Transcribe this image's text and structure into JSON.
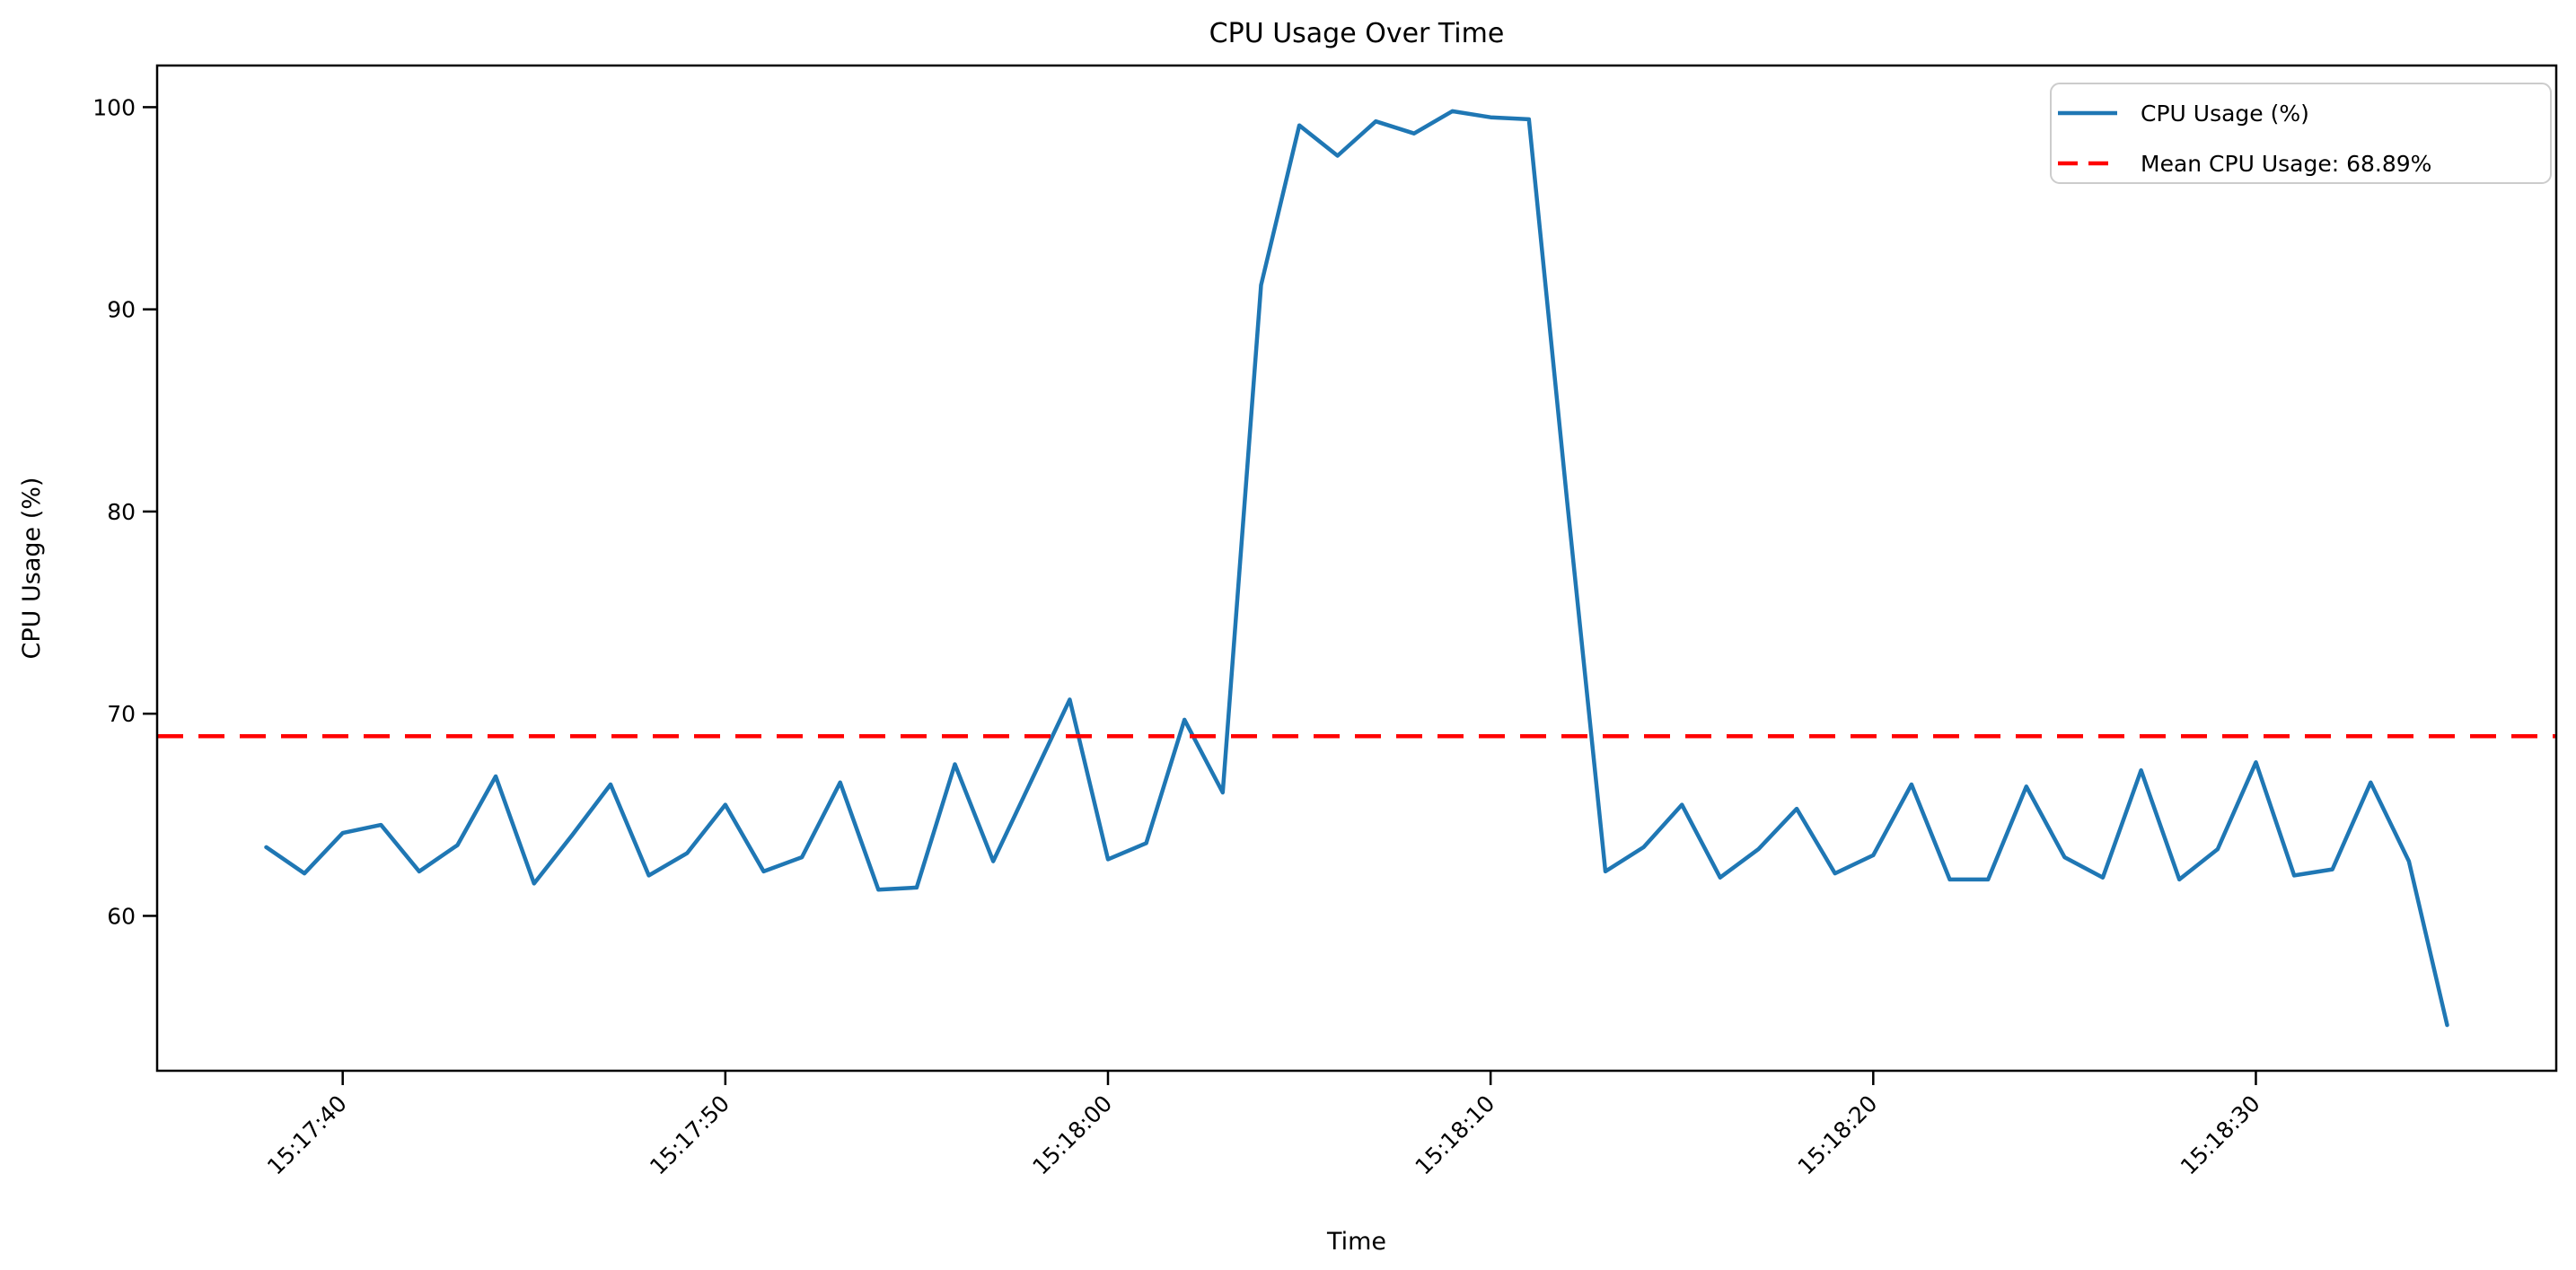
{
  "chart_data": {
    "type": "line",
    "title": "CPU Usage Over Time",
    "xlabel": "Time",
    "ylabel": "CPU Usage (%)",
    "grid": false,
    "legend_position": "upper right",
    "legend": [
      "CPU Usage (%)",
      "Mean CPU Usage: 68.89%"
    ],
    "yticks": [
      60,
      70,
      80,
      90,
      100
    ],
    "xticks": [
      "15:17:40",
      "15:17:50",
      "15:18:00",
      "15:18:10",
      "15:18:20",
      "15:18:30"
    ],
    "ylim": [
      52.3,
      102.1
    ],
    "x": [
      "15:17:38",
      "15:17:39",
      "15:17:40",
      "15:17:41",
      "15:17:42",
      "15:17:43",
      "15:17:44",
      "15:17:45",
      "15:17:46",
      "15:17:47",
      "15:17:48",
      "15:17:49",
      "15:17:50",
      "15:17:51",
      "15:17:52",
      "15:17:53",
      "15:17:54",
      "15:17:55",
      "15:17:56",
      "15:17:57",
      "15:17:58",
      "15:17:59",
      "15:18:00",
      "15:18:01",
      "15:18:02",
      "15:18:03",
      "15:18:04",
      "15:18:05",
      "15:18:06",
      "15:18:07",
      "15:18:08",
      "15:18:09",
      "15:18:10",
      "15:18:11",
      "15:18:12",
      "15:18:13",
      "15:18:14",
      "15:18:15",
      "15:18:16",
      "15:18:17",
      "15:18:18",
      "15:18:19",
      "15:18:20",
      "15:18:21",
      "15:18:22",
      "15:18:23",
      "15:18:24",
      "15:18:25",
      "15:18:26",
      "15:18:27",
      "15:18:28",
      "15:18:29",
      "15:18:30",
      "15:18:31",
      "15:18:32",
      "15:18:33",
      "15:18:34",
      "15:18:35"
    ],
    "series": [
      {
        "name": "CPU Usage (%)",
        "color": "#1f77b4",
        "style": "solid",
        "values": [
          63.4,
          62.1,
          64.1,
          64.5,
          62.2,
          63.5,
          66.9,
          61.6,
          64.0,
          66.5,
          62.0,
          63.1,
          65.5,
          62.2,
          62.9,
          66.6,
          61.3,
          61.4,
          67.5,
          62.7,
          66.7,
          70.7,
          62.8,
          63.6,
          69.7,
          66.1,
          91.2,
          99.1,
          97.6,
          99.3,
          98.7,
          99.8,
          99.5,
          99.4,
          80.5,
          62.2,
          63.4,
          65.5,
          61.9,
          63.3,
          65.3,
          62.1,
          63.0,
          66.5,
          61.8,
          61.8,
          66.4,
          62.9,
          61.9,
          67.2,
          61.8,
          63.3,
          67.6,
          62.0,
          62.3,
          66.6,
          62.7,
          54.6
        ]
      },
      {
        "name": "Mean CPU Usage: 68.89%",
        "color": "#ff0000",
        "style": "dashed",
        "mean_value": 68.89
      }
    ]
  }
}
